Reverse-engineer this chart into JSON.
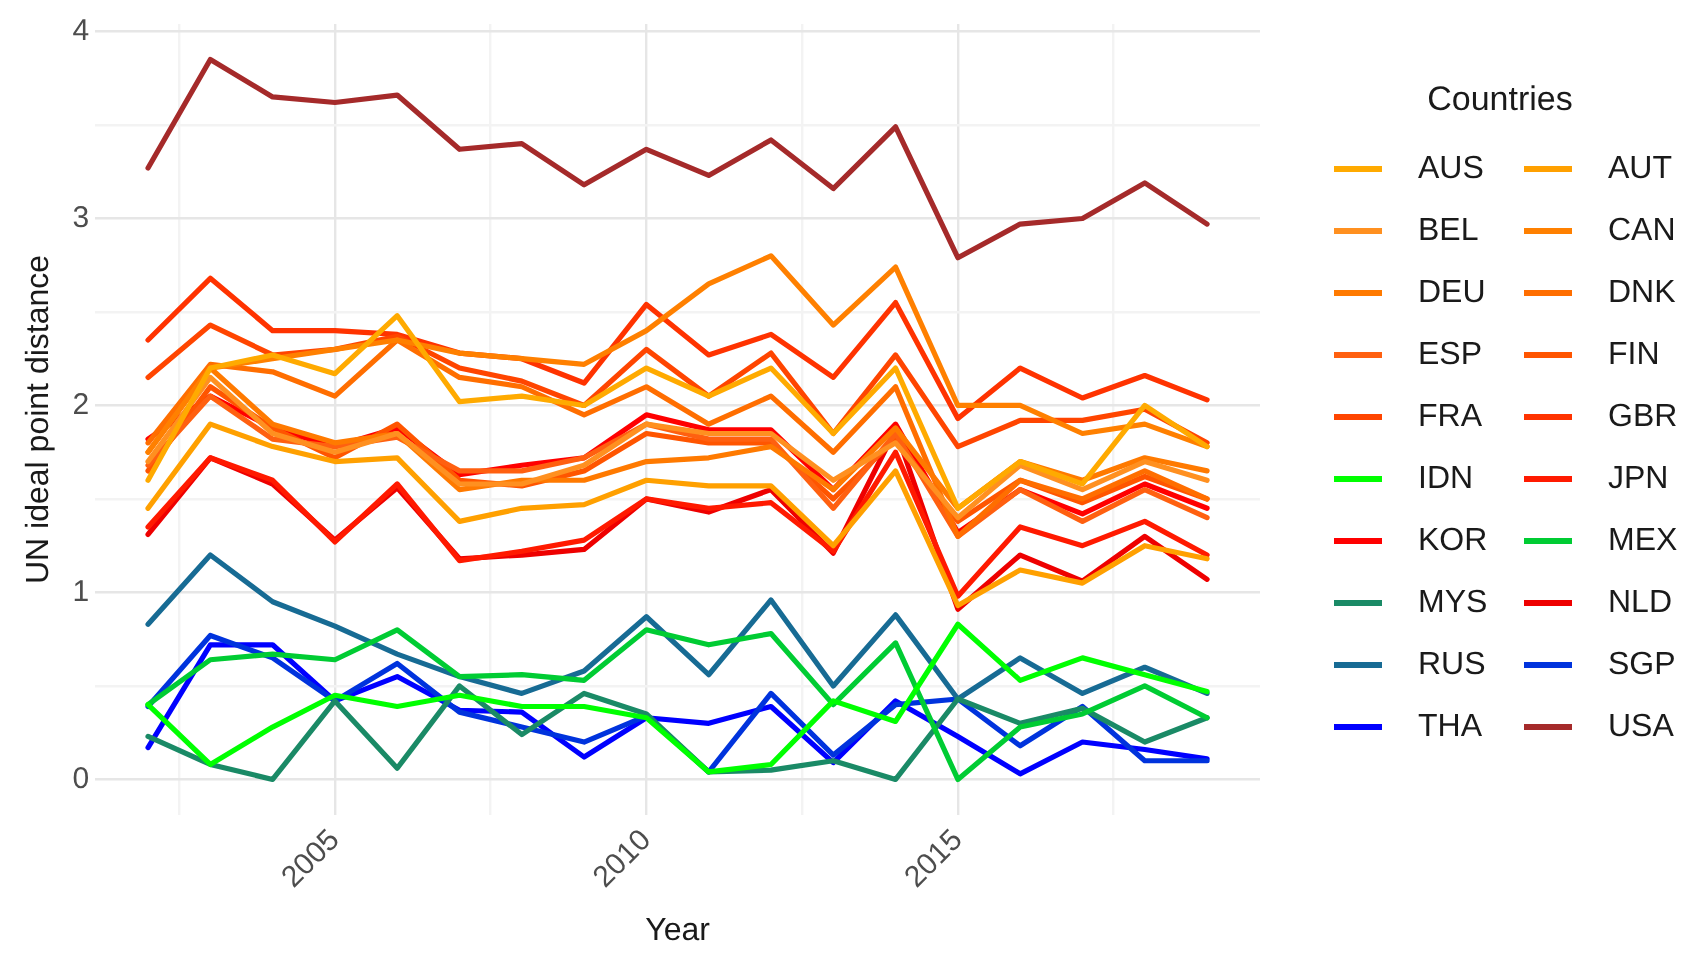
{
  "chart_data": {
    "type": "line",
    "xlabel": "Year",
    "ylabel": "UN ideal point distance",
    "legend_title": "Countries",
    "legend": "right",
    "grid": true,
    "marker": "none",
    "line_style": "solid",
    "x": [
      2002,
      2003,
      2004,
      2005,
      2006,
      2007,
      2008,
      2009,
      2010,
      2011,
      2012,
      2013,
      2014,
      2015,
      2016,
      2017,
      2018,
      2019
    ],
    "xlim": [
      2001.15,
      2019.85
    ],
    "xticks": [
      {
        "value": 2002.5,
        "label": null
      },
      2005,
      {
        "value": 2007.5,
        "label": null
      },
      2010,
      {
        "value": 2012.5,
        "label": null
      },
      2015,
      {
        "value": 2017.5,
        "label": null
      }
    ],
    "ylim": [
      -0.19,
      4.04
    ],
    "yticks": [
      0,
      {
        "value": 0.5,
        "label": null
      },
      1,
      {
        "value": 1.5,
        "label": null
      },
      2,
      {
        "value": 2.5,
        "label": null
      },
      3,
      {
        "value": 3.5,
        "label": null
      },
      4
    ],
    "series": [
      {
        "name": "AUS",
        "color": "#ffaa00",
        "values": [
          1.6,
          2.2,
          2.27,
          2.17,
          2.48,
          2.02,
          2.05,
          2.0,
          2.2,
          2.05,
          2.2,
          1.85,
          2.2,
          1.45,
          1.7,
          1.58,
          2.0,
          1.78
        ]
      },
      {
        "name": "AUT",
        "color": "#ffa000",
        "values": [
          1.45,
          1.9,
          1.78,
          1.7,
          1.72,
          1.38,
          1.45,
          1.47,
          1.6,
          1.57,
          1.57,
          1.25,
          1.65,
          0.93,
          1.12,
          1.05,
          1.25,
          1.18
        ]
      },
      {
        "name": "BEL",
        "color": "#ff9020",
        "values": [
          1.7,
          2.15,
          1.85,
          1.75,
          1.85,
          1.58,
          1.58,
          1.68,
          1.9,
          1.85,
          1.85,
          1.6,
          1.8,
          1.4,
          1.68,
          1.55,
          1.7,
          1.6
        ]
      },
      {
        "name": "CAN",
        "color": "#ff8000",
        "values": [
          1.75,
          2.2,
          2.25,
          2.3,
          2.35,
          2.28,
          2.25,
          2.22,
          2.4,
          2.65,
          2.8,
          2.43,
          2.74,
          2.0,
          2.0,
          1.85,
          1.9,
          1.78
        ]
      },
      {
        "name": "DEU",
        "color": "#ff7a00",
        "values": [
          1.75,
          2.2,
          1.9,
          1.8,
          1.85,
          1.55,
          1.6,
          1.6,
          1.7,
          1.72,
          1.78,
          1.55,
          1.88,
          1.45,
          1.7,
          1.6,
          1.72,
          1.65
        ]
      },
      {
        "name": "DNK",
        "color": "#ff6e00",
        "values": [
          1.8,
          2.22,
          2.18,
          2.05,
          2.35,
          2.15,
          2.1,
          1.95,
          2.1,
          1.9,
          2.05,
          1.75,
          2.1,
          1.3,
          1.6,
          1.5,
          1.65,
          1.5
        ]
      },
      {
        "name": "ESP",
        "color": "#ff6010",
        "values": [
          1.68,
          2.05,
          1.82,
          1.78,
          1.83,
          1.65,
          1.65,
          1.72,
          1.9,
          1.82,
          1.82,
          1.45,
          1.85,
          1.3,
          1.55,
          1.38,
          1.55,
          1.4
        ]
      },
      {
        "name": "FIN",
        "color": "#ff5500",
        "values": [
          1.65,
          2.1,
          1.88,
          1.72,
          1.9,
          1.6,
          1.57,
          1.65,
          1.85,
          1.8,
          1.8,
          1.5,
          1.82,
          1.38,
          1.6,
          1.48,
          1.62,
          1.5
        ]
      },
      {
        "name": "FRA",
        "color": "#ff4500",
        "values": [
          2.15,
          2.43,
          2.27,
          2.3,
          2.37,
          2.2,
          2.13,
          2.0,
          2.3,
          2.05,
          2.28,
          1.85,
          2.27,
          1.78,
          1.92,
          1.92,
          1.98,
          1.8
        ]
      },
      {
        "name": "GBR",
        "color": "#ff3300",
        "values": [
          2.35,
          2.68,
          2.4,
          2.4,
          2.38,
          2.28,
          2.25,
          2.12,
          2.54,
          2.27,
          2.38,
          2.15,
          2.55,
          1.93,
          2.2,
          2.04,
          2.16,
          2.03
        ]
      },
      {
        "name": "IDN",
        "color": "#00ff00",
        "values": [
          0.4,
          0.08,
          0.28,
          0.45,
          0.39,
          0.45,
          0.39,
          0.39,
          0.33,
          0.04,
          0.08,
          0.42,
          0.31,
          0.83,
          0.53,
          0.65,
          0.56,
          0.47
        ]
      },
      {
        "name": "JPN",
        "color": "#ff1a00",
        "values": [
          1.35,
          1.72,
          1.6,
          1.27,
          1.58,
          1.17,
          1.22,
          1.28,
          1.5,
          1.45,
          1.48,
          1.22,
          1.75,
          0.98,
          1.35,
          1.25,
          1.38,
          1.2
        ]
      },
      {
        "name": "KOR",
        "color": "#ff0000",
        "values": [
          1.82,
          2.05,
          1.88,
          1.78,
          1.88,
          1.63,
          1.68,
          1.72,
          1.95,
          1.87,
          1.87,
          1.55,
          1.9,
          1.32,
          1.55,
          1.42,
          1.58,
          1.45
        ]
      },
      {
        "name": "MEX",
        "color": "#00cc33",
        "values": [
          0.4,
          0.64,
          0.67,
          0.64,
          0.8,
          0.55,
          0.56,
          0.53,
          0.8,
          0.72,
          0.78,
          0.4,
          0.73,
          0.0,
          0.28,
          0.35,
          0.5,
          0.33
        ]
      },
      {
        "name": "MYS",
        "color": "#1a8a66",
        "values": [
          0.23,
          0.08,
          0.0,
          0.42,
          0.06,
          0.5,
          0.24,
          0.46,
          0.35,
          0.04,
          0.05,
          0.1,
          0.0,
          0.43,
          0.3,
          0.38,
          0.2,
          0.33
        ]
      },
      {
        "name": "NLD",
        "color": "#ee0000",
        "values": [
          1.31,
          1.72,
          1.58,
          1.28,
          1.56,
          1.18,
          1.2,
          1.23,
          1.5,
          1.43,
          1.55,
          1.21,
          1.87,
          0.91,
          1.2,
          1.06,
          1.3,
          1.07
        ]
      },
      {
        "name": "RUS",
        "color": "#176b94",
        "values": [
          0.83,
          1.2,
          0.95,
          0.82,
          0.67,
          0.55,
          0.46,
          0.58,
          0.87,
          0.56,
          0.96,
          0.5,
          0.88,
          0.43,
          0.65,
          0.46,
          0.6,
          0.46
        ]
      },
      {
        "name": "SGP",
        "color": "#0033dd",
        "values": [
          0.39,
          0.77,
          0.65,
          0.42,
          0.62,
          0.36,
          0.28,
          0.2,
          0.34,
          0.04,
          0.46,
          0.13,
          0.4,
          0.43,
          0.18,
          0.39,
          0.1,
          0.1
        ]
      },
      {
        "name": "THA",
        "color": "#0000ff",
        "values": [
          0.17,
          0.72,
          0.72,
          0.42,
          0.55,
          0.37,
          0.36,
          0.12,
          0.33,
          0.3,
          0.39,
          0.09,
          0.42,
          0.23,
          0.03,
          0.2,
          0.16,
          0.11
        ]
      },
      {
        "name": "USA",
        "color": "#a52a2a",
        "values": [
          3.27,
          3.85,
          3.65,
          3.62,
          3.66,
          3.37,
          3.4,
          3.18,
          3.37,
          3.23,
          3.42,
          3.16,
          3.49,
          2.79,
          2.97,
          3.0,
          3.19,
          2.97
        ]
      }
    ]
  }
}
